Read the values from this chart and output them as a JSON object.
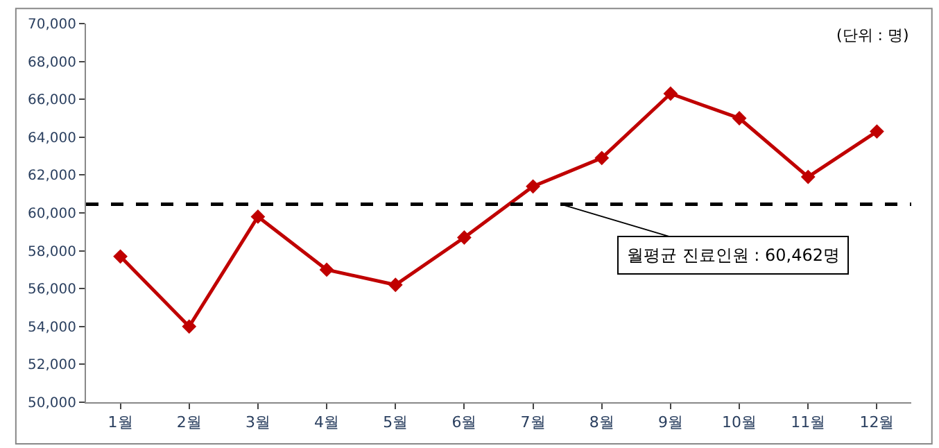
{
  "chart_data": {
    "type": "line",
    "categories": [
      "1월",
      "2월",
      "3월",
      "4월",
      "5월",
      "6월",
      "7월",
      "8월",
      "9월",
      "10월",
      "11월",
      "12월"
    ],
    "series": [
      {
        "color": "#c00000",
        "values": [
          57700,
          54000,
          59800,
          57000,
          56200,
          58700,
          61400,
          62900,
          66300,
          65000,
          61900,
          64300
        ]
      }
    ],
    "ylim": [
      50000,
      70000
    ],
    "yticks": [
      {
        "value": 50000,
        "label": "50,000"
      },
      {
        "value": 52000,
        "label": "52,000"
      },
      {
        "value": 54000,
        "label": "54,000"
      },
      {
        "value": 56000,
        "label": "56,000"
      },
      {
        "value": 58000,
        "label": "58,000"
      },
      {
        "value": 60000,
        "label": "60,000"
      },
      {
        "value": 62000,
        "label": "62,000"
      },
      {
        "value": 64000,
        "label": "64,000"
      },
      {
        "value": 66000,
        "label": "66,000"
      },
      {
        "value": 68000,
        "label": "68,000"
      },
      {
        "value": 70000,
        "label": "70,000"
      }
    ],
    "ref_lines": [
      {
        "axis": "y",
        "value": 60462,
        "label": "월평균 진료인원 : 60,462명",
        "color": "#000000",
        "line_style": "dashed"
      }
    ],
    "annotations": [
      "(단위 : 명)"
    ],
    "marker": "diamond",
    "line_style": "solid",
    "legend": false
  }
}
